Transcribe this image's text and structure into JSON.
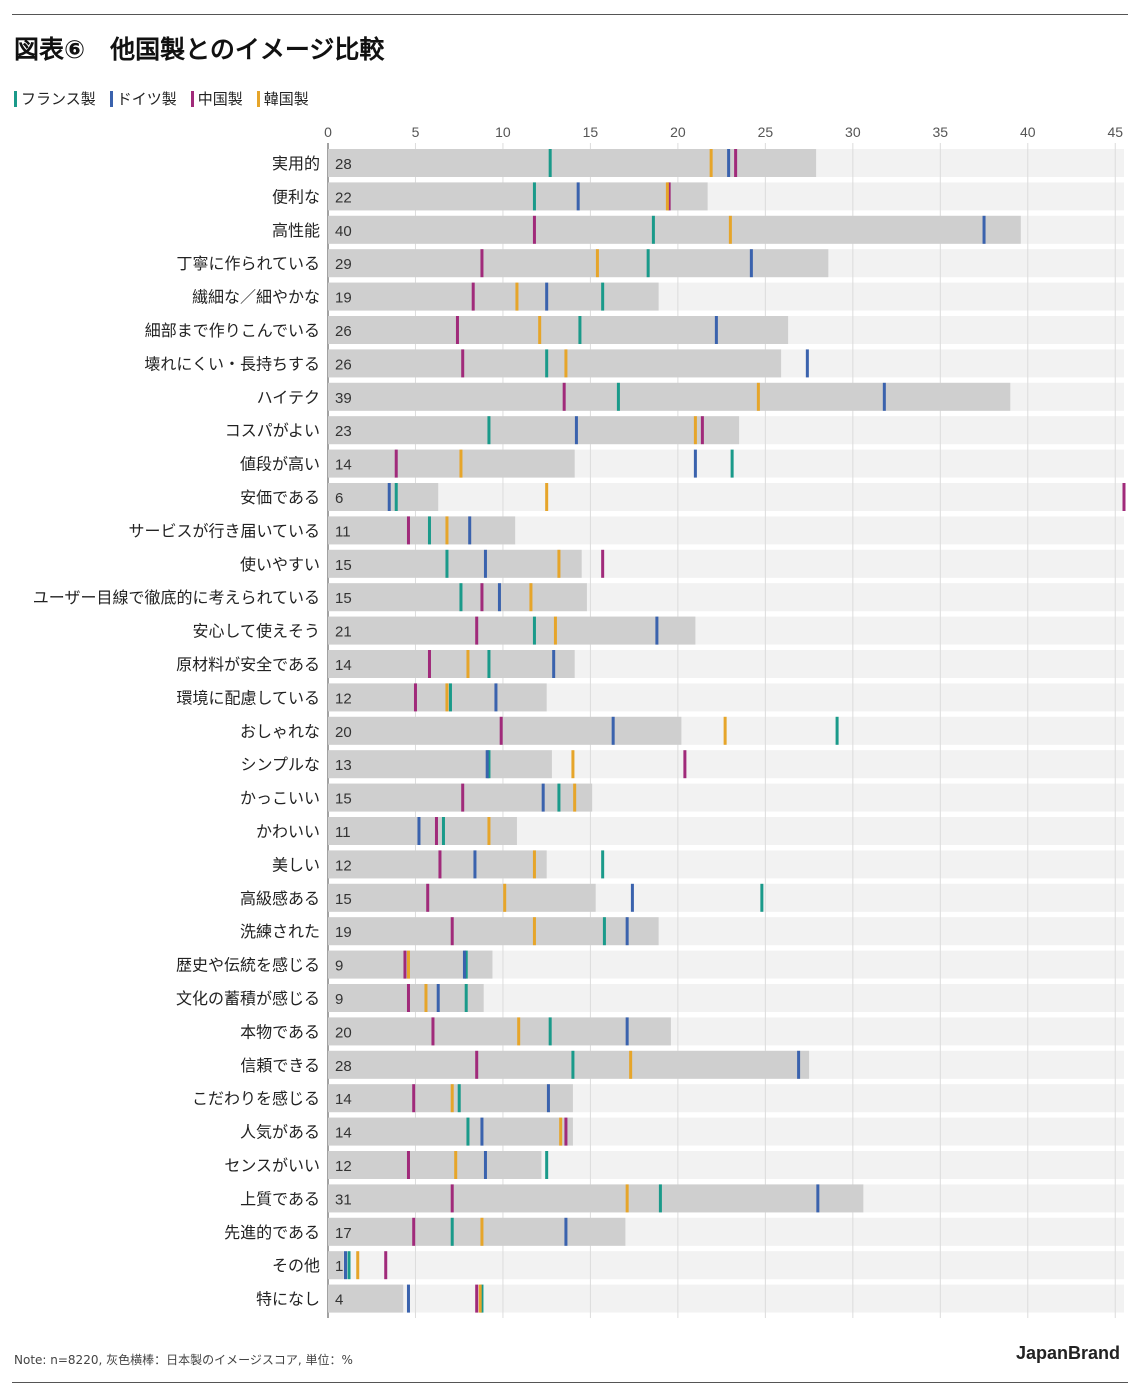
{
  "title": "図表⑥　他国製とのイメージ比較",
  "note": "Note: n=8220, 灰色横棒：日本製のイメージスコア, 単位：%",
  "brand": "JapanBrand",
  "colors": {
    "base_bar": "#cfcfcf",
    "row_bg": "#f2f2f2",
    "france": "#1a9a8a",
    "germany": "#3a62ad",
    "china": "#a02a7a",
    "korea": "#e6a52a"
  },
  "chart_data": {
    "type": "bar",
    "orientation": "horizontal",
    "xlim": [
      0,
      45.5
    ],
    "xticks": [
      0,
      5,
      10,
      15,
      20,
      25,
      30,
      35,
      40,
      45
    ],
    "grid": true,
    "legend_position": "top-left",
    "categories": [
      "実用的",
      "便利な",
      "高性能",
      "丁寧に作られている",
      "繊細な／細やかな",
      "細部まで作りこんでいる",
      "壊れにくい・長持ちする",
      "ハイテク",
      "コスパがよい",
      "値段が高い",
      "安価である",
      "サービスが行き届いている",
      "使いやすい",
      "ユーザー目線で徹底的に考えられている",
      "安心して使えそう",
      "原材料が安全である",
      "環境に配慮している",
      "おしゃれな",
      "シンプルな",
      "かっこいい",
      "かわいい",
      "美しい",
      "高級感ある",
      "洗練された",
      "歴史や伝統を感じる",
      "文化の蓄積が感じる",
      "本物である",
      "信頼できる",
      "こだわりを感じる",
      "人気がある",
      "センスがいい",
      "上質である",
      "先進的である",
      "その他",
      "特になし"
    ],
    "japan_labels": [
      "28",
      "22",
      "40",
      "29",
      "19",
      "26",
      "26",
      "39",
      "23",
      "14",
      "6",
      "11",
      "15",
      "15",
      "21",
      "14",
      "12",
      "20",
      "13",
      "15",
      "11",
      "12",
      "15",
      "19",
      "9",
      "9",
      "20",
      "28",
      "14",
      "14",
      "12",
      "31",
      "17",
      "1",
      "4"
    ],
    "japan_values": [
      27.9,
      21.7,
      39.6,
      28.6,
      18.9,
      26.3,
      25.9,
      39.0,
      23.5,
      14.1,
      6.3,
      10.7,
      14.5,
      14.8,
      21.0,
      14.1,
      12.5,
      20.2,
      12.8,
      15.1,
      10.8,
      12.5,
      15.3,
      18.9,
      9.4,
      8.9,
      19.6,
      27.5,
      14.0,
      14.0,
      12.2,
      30.6,
      17.0,
      0.9,
      4.3
    ],
    "series": [
      {
        "name": "フランス製",
        "color": "#1a9a8a",
        "values": [
          12.7,
          11.8,
          18.6,
          18.3,
          15.7,
          14.4,
          12.5,
          16.6,
          9.2,
          23.1,
          3.9,
          5.8,
          6.8,
          7.6,
          11.8,
          9.2,
          7.0,
          29.1,
          9.2,
          13.2,
          6.6,
          15.7,
          24.8,
          15.8,
          7.9,
          7.9,
          12.7,
          14.0,
          7.5,
          8.0,
          12.5,
          19.0,
          7.1,
          1.2,
          8.8
        ]
      },
      {
        "name": "ドイツ製",
        "color": "#3a62ad",
        "values": [
          22.9,
          14.3,
          37.5,
          24.2,
          12.5,
          22.2,
          27.4,
          31.8,
          14.2,
          21.0,
          3.5,
          8.1,
          9.0,
          9.8,
          18.8,
          12.9,
          9.6,
          16.3,
          9.1,
          12.3,
          5.2,
          8.4,
          17.4,
          17.1,
          7.8,
          6.3,
          17.1,
          26.9,
          12.6,
          8.8,
          9.0,
          28.0,
          13.6,
          1.0,
          4.6
        ]
      },
      {
        "name": "中国製",
        "color": "#a02a7a",
        "values": [
          23.3,
          19.5,
          11.8,
          8.8,
          8.3,
          7.4,
          7.7,
          13.5,
          21.4,
          3.9,
          45.5,
          4.6,
          15.7,
          8.8,
          8.5,
          5.8,
          5.0,
          9.9,
          20.4,
          7.7,
          6.2,
          6.4,
          5.7,
          7.1,
          4.4,
          4.6,
          6.0,
          8.5,
          4.9,
          13.6,
          4.6,
          7.1,
          4.9,
          3.3,
          8.5
        ]
      },
      {
        "name": "韓国製",
        "color": "#e6a52a",
        "values": [
          21.9,
          19.4,
          23.0,
          15.4,
          10.8,
          12.1,
          13.6,
          24.6,
          21.0,
          7.6,
          12.5,
          6.8,
          13.2,
          11.6,
          13.0,
          8.0,
          6.8,
          22.7,
          14.0,
          14.1,
          9.2,
          11.8,
          10.1,
          11.8,
          4.6,
          5.6,
          10.9,
          17.3,
          7.1,
          13.3,
          7.3,
          17.1,
          8.8,
          1.7,
          8.7
        ]
      }
    ]
  }
}
